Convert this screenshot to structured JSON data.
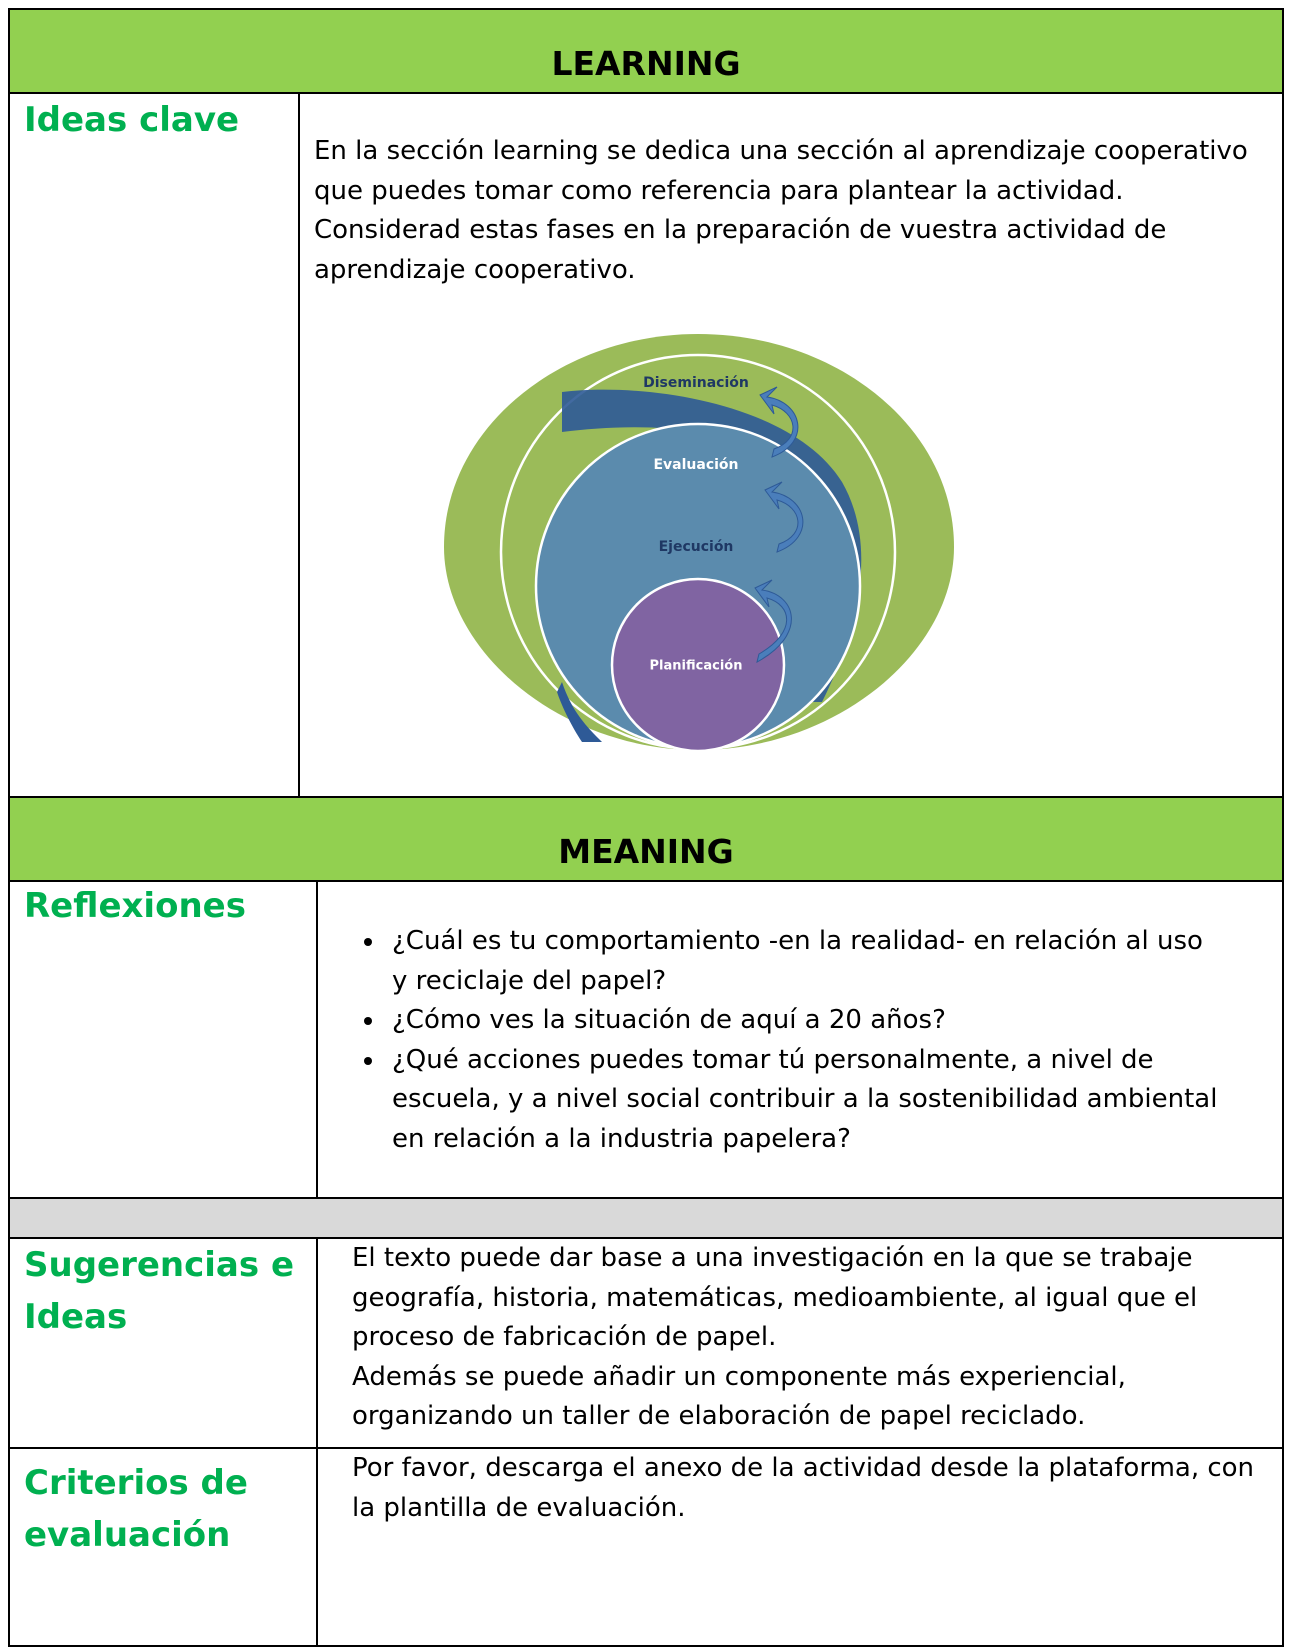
{
  "learning": {
    "header": "LEARNING",
    "label": "Ideas clave",
    "paragraphs": [
      "En la sección learning se dedica una sección al aprendizaje cooperativo que puedes tomar como referencia para plantear la actividad.",
      "Considerad estas fases en la preparación de vuestra actividad de aprendizaje cooperativo."
    ],
    "diagram": {
      "phases": [
        "Diseminación",
        "Evaluación",
        "Ejecución",
        "Planificación"
      ]
    }
  },
  "meaning": {
    "header": "MEANING",
    "label": "Reflexiones",
    "bullets": [
      "¿Cuál es tu comportamiento -en la realidad- en relación al uso y reciclaje del papel?",
      "¿Cómo ves la situación de aquí a 20 años?",
      "¿Qué acciones puedes tomar tú personalmente, a nivel de escuela, y a nivel social contribuir a la sostenibilidad ambiental en relación a la industria papelera?"
    ]
  },
  "sugerencias": {
    "label": "Sugerencias e Ideas",
    "paragraphs": [
      "El texto puede dar base a una investigación en la que se trabaje geografía, historia, matemáticas, medioambiente, al igual que el proceso de fabricación de papel.",
      "Además se puede añadir un componente más experiencial, organizando un taller de elaboración de papel reciclado."
    ]
  },
  "criterios": {
    "label": "Criterios de evaluación",
    "paragraphs": [
      "Por favor, descarga el anexo de la actividad desde la plataforma, con la plantilla de evaluación."
    ]
  }
}
